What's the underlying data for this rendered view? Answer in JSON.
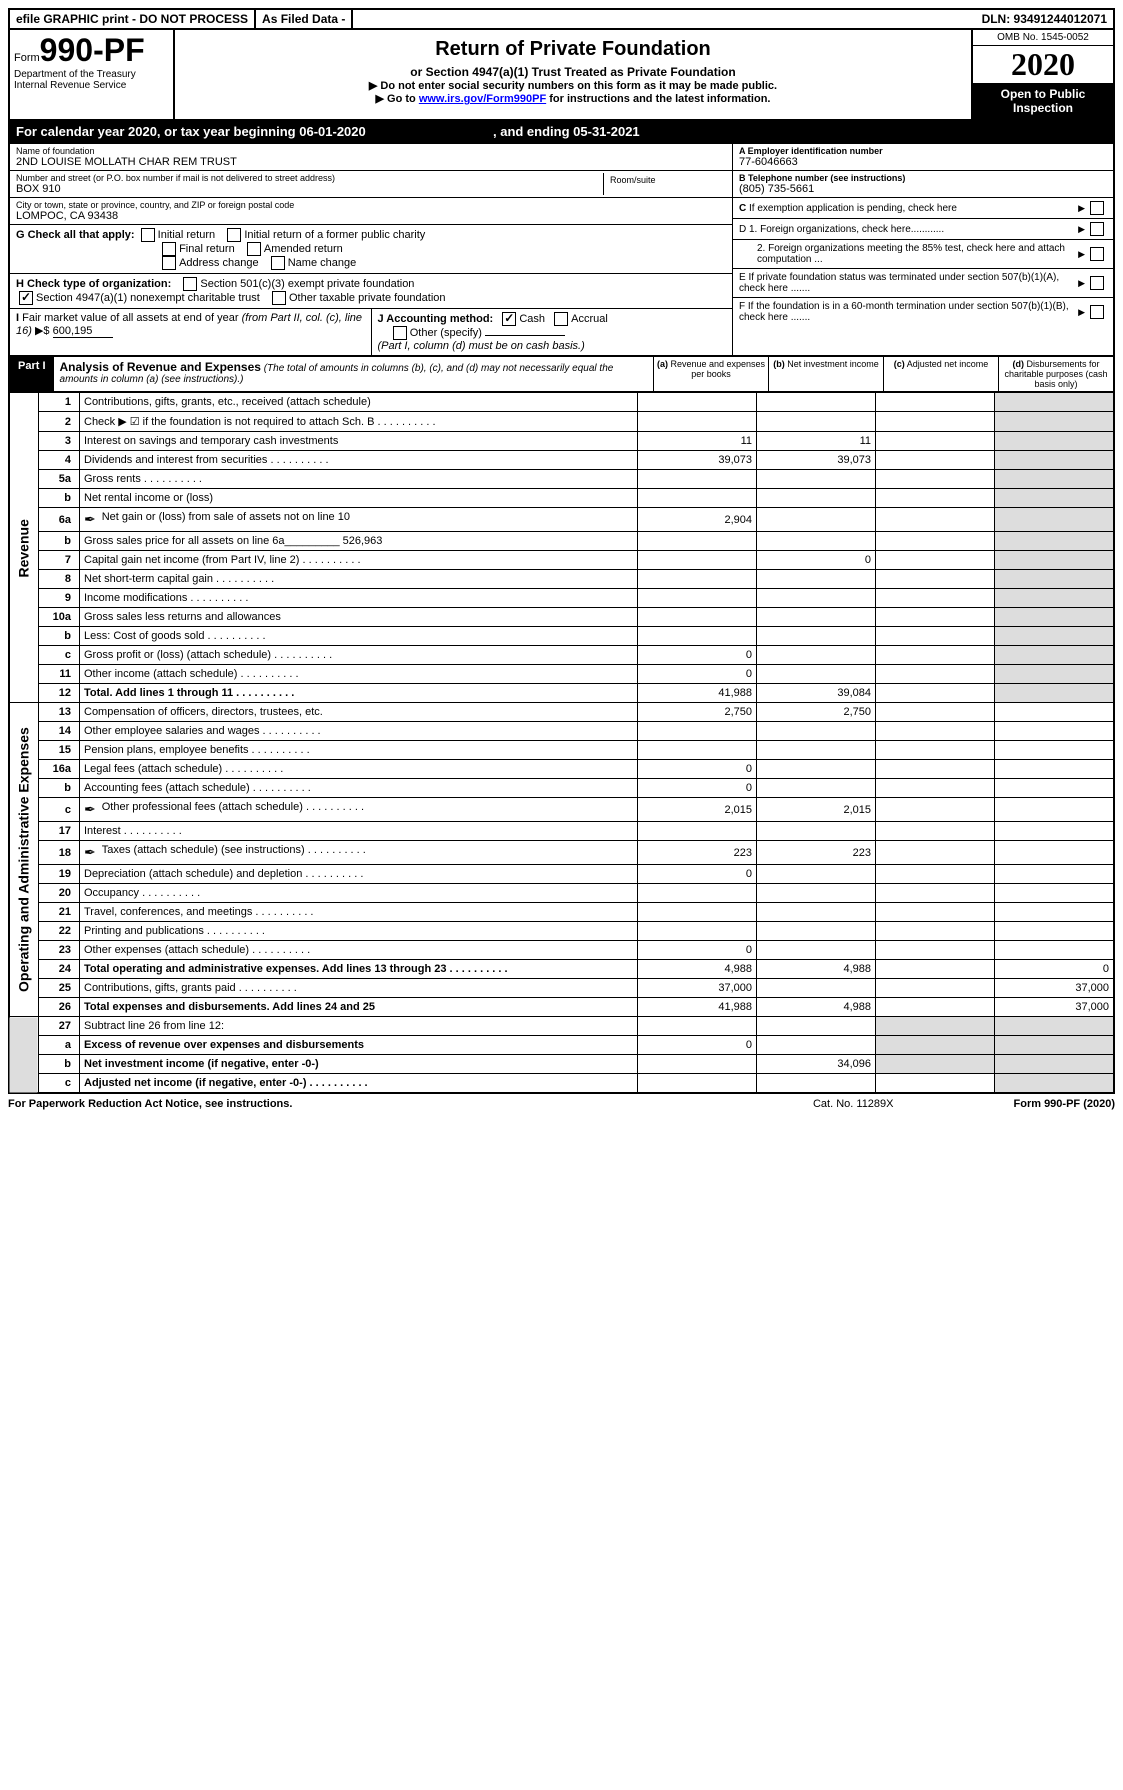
{
  "topbar": {
    "efile": "efile GRAPHIC print - DO NOT PROCESS",
    "asfiled": "As Filed Data -",
    "dln": "DLN: 93491244012071"
  },
  "header": {
    "form_prefix": "Form",
    "form_num": "990-PF",
    "dept": "Department of the Treasury",
    "irs": "Internal Revenue Service",
    "title": "Return of Private Foundation",
    "subtitle": "or Section 4947(a)(1) Trust Treated as Private Foundation",
    "note1": "▶ Do not enter social security numbers on this form as it may be made public.",
    "note2_pre": "▶ Go to ",
    "note2_link": "www.irs.gov/Form990PF",
    "note2_post": " for instructions and the latest information.",
    "omb": "OMB No. 1545-0052",
    "year": "2020",
    "inspect": "Open to Public Inspection"
  },
  "calendar": {
    "text_pre": "For calendar year 2020, or tax year beginning ",
    "begin": "06-01-2020",
    "text_mid": " , and ending ",
    "end": "05-31-2021"
  },
  "info": {
    "name_lbl": "Name of foundation",
    "name_val": "2ND LOUISE MOLLATH CHAR REM TRUST",
    "addr_lbl": "Number and street (or P.O. box number if mail is not delivered to street address)",
    "addr_val": "BOX 910",
    "room_lbl": "Room/suite",
    "city_lbl": "City or town, state or province, country, and ZIP or foreign postal code",
    "city_val": "LOMPOC, CA  93438",
    "a_lbl": "A Employer identification number",
    "a_val": "77-6046663",
    "b_lbl": "B Telephone number (see instructions)",
    "b_val": "(805) 735-5661",
    "c_lbl": "C If exemption application is pending, check here",
    "d1": "D 1. Foreign organizations, check here............",
    "d2": "2. Foreign organizations meeting the 85% test, check here and attach computation ...",
    "e": "E If private foundation status was terminated under section 507(b)(1)(A), check here .......",
    "f": "F If the foundation is in a 60-month termination under section 507(b)(1)(B), check here .......",
    "g_lbl": "G Check all that apply:",
    "g_opts": [
      "Initial return",
      "Initial return of a former public charity",
      "Final return",
      "Amended return",
      "Address change",
      "Name change"
    ],
    "h_lbl": "H Check type of organization:",
    "h_opts": [
      "Section 501(c)(3) exempt private foundation",
      "Section 4947(a)(1) nonexempt charitable trust",
      "Other taxable private foundation"
    ],
    "i_lbl": "I Fair market value of all assets at end of year (from Part II, col. (c), line 16) ▶$ ",
    "i_val": "600,195",
    "j_lbl": "J Accounting method:",
    "j_cash": "Cash",
    "j_accrual": "Accrual",
    "j_other": "Other (specify)",
    "j_note": "(Part I, column (d) must be on cash basis.)"
  },
  "part1": {
    "label": "Part I",
    "title": "Analysis of Revenue and Expenses",
    "desc": "(The total of amounts in columns (b), (c), and (d) may not necessarily equal the amounts in column (a) (see instructions).)",
    "col_a": "(a) Revenue and expenses per books",
    "col_b": "(b) Net investment income",
    "col_c": "(c) Adjusted net income",
    "col_d": "(d) Disbursements for charitable purposes (cash basis only)"
  },
  "sections": {
    "revenue": "Revenue",
    "opex": "Operating and Administrative Expenses"
  },
  "lines": [
    {
      "n": "1",
      "d": "Contributions, gifts, grants, etc., received (attach schedule)"
    },
    {
      "n": "2",
      "d": "Check ▶ ☑ if the foundation is not required to attach Sch. B",
      "dots": true
    },
    {
      "n": "3",
      "d": "Interest on savings and temporary cash investments",
      "a": "11",
      "b": "11"
    },
    {
      "n": "4",
      "d": "Dividends and interest from securities",
      "dots": true,
      "a": "39,073",
      "b": "39,073"
    },
    {
      "n": "5a",
      "d": "Gross rents",
      "dots": true
    },
    {
      "n": "b",
      "d": "Net rental income or (loss)"
    },
    {
      "n": "6a",
      "d": "Net gain or (loss) from sale of assets not on line 10",
      "icon": true,
      "a": "2,904"
    },
    {
      "n": "b",
      "d": "Gross sales price for all assets on line 6a_________ 526,963"
    },
    {
      "n": "7",
      "d": "Capital gain net income (from Part IV, line 2)",
      "dots": true,
      "b": "0"
    },
    {
      "n": "8",
      "d": "Net short-term capital gain",
      "dots": true
    },
    {
      "n": "9",
      "d": "Income modifications",
      "dots": true
    },
    {
      "n": "10a",
      "d": "Gross sales less returns and allowances"
    },
    {
      "n": "b",
      "d": "Less: Cost of goods sold",
      "dots": true
    },
    {
      "n": "c",
      "d": "Gross profit or (loss) (attach schedule)",
      "dots": true,
      "a": "0"
    },
    {
      "n": "11",
      "d": "Other income (attach schedule)",
      "dots": true,
      "a": "0"
    },
    {
      "n": "12",
      "d": "Total. Add lines 1 through 11",
      "dots": true,
      "bold": true,
      "a": "41,988",
      "b": "39,084"
    }
  ],
  "expense_lines": [
    {
      "n": "13",
      "d": "Compensation of officers, directors, trustees, etc.",
      "a": "2,750",
      "b": "2,750"
    },
    {
      "n": "14",
      "d": "Other employee salaries and wages",
      "dots": true
    },
    {
      "n": "15",
      "d": "Pension plans, employee benefits",
      "dots": true
    },
    {
      "n": "16a",
      "d": "Legal fees (attach schedule)",
      "dots": true,
      "a": "0"
    },
    {
      "n": "b",
      "d": "Accounting fees (attach schedule)",
      "dots": true,
      "a": "0"
    },
    {
      "n": "c",
      "d": "Other professional fees (attach schedule)",
      "dots": true,
      "icon": true,
      "a": "2,015",
      "b": "2,015"
    },
    {
      "n": "17",
      "d": "Interest",
      "dots": true
    },
    {
      "n": "18",
      "d": "Taxes (attach schedule) (see instructions)",
      "dots": true,
      "icon": true,
      "a": "223",
      "b": "223"
    },
    {
      "n": "19",
      "d": "Depreciation (attach schedule) and depletion",
      "dots": true,
      "a": "0"
    },
    {
      "n": "20",
      "d": "Occupancy",
      "dots": true
    },
    {
      "n": "21",
      "d": "Travel, conferences, and meetings",
      "dots": true
    },
    {
      "n": "22",
      "d": "Printing and publications",
      "dots": true
    },
    {
      "n": "23",
      "d": "Other expenses (attach schedule)",
      "dots": true,
      "a": "0"
    },
    {
      "n": "24",
      "d": "Total operating and administrative expenses. Add lines 13 through 23",
      "dots": true,
      "bold": true,
      "a": "4,988",
      "b": "4,988",
      "dd": "0"
    },
    {
      "n": "25",
      "d": "Contributions, gifts, grants paid",
      "dots": true,
      "a": "37,000",
      "dd": "37,000"
    },
    {
      "n": "26",
      "d": "Total expenses and disbursements. Add lines 24 and 25",
      "bold": true,
      "a": "41,988",
      "b": "4,988",
      "dd": "37,000"
    }
  ],
  "bottom_lines": [
    {
      "n": "27",
      "d": "Subtract line 26 from line 12:"
    },
    {
      "n": "a",
      "d": "Excess of revenue over expenses and disbursements",
      "bold": true,
      "a": "0"
    },
    {
      "n": "b",
      "d": "Net investment income (if negative, enter -0-)",
      "bold": true,
      "b": "34,096"
    },
    {
      "n": "c",
      "d": "Adjusted net income (if negative, enter -0-)",
      "bold": true,
      "dots": true
    }
  ],
  "footer": {
    "left": "For Paperwork Reduction Act Notice, see instructions.",
    "mid": "Cat. No. 11289X",
    "right": "Form 990-PF (2020)"
  }
}
